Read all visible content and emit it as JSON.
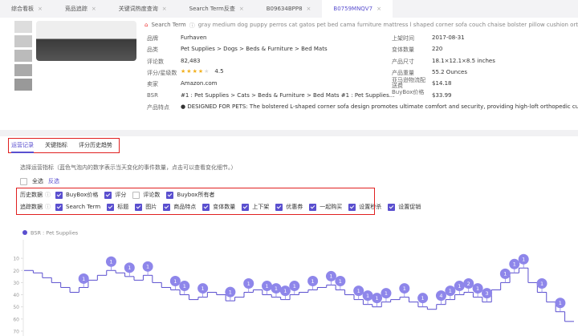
{
  "tabs": [
    "综合看板",
    "竞品追踪",
    "关键词热度查询",
    "Search Term反查",
    "B09634BPP8",
    "B0759MNQV7"
  ],
  "product": {
    "search_term_label": "Search Term",
    "search_term": "gray medium dog puppy perros cat gatos pet bed cama furniture mattress l shaped corner sofa couch chaise bolster pillow cushion orth...",
    "left": [
      {
        "label": "品牌",
        "value": "Furhaven"
      },
      {
        "label": "品类",
        "value": "Pet Supplies > Dogs > Beds & Furniture > Bed Mats"
      },
      {
        "label": "评论数",
        "value": "82,483"
      },
      {
        "label": "评分/星级数",
        "value": 4.5
      },
      {
        "label": "卖家",
        "value": "Amazon.com"
      },
      {
        "label": "BSR",
        "value": "#1 : Pet Supplies > Cats > Beds & Furniture > Bed Mats #1 : Pet Supplies..."
      },
      {
        "label": "产品特点",
        "value": "● DESIGNED FOR PETS: The bolstered L-shaped corner sofa design promotes ultimate comfort and security, providing high-loft orthopedic cushion..."
      }
    ],
    "right": [
      {
        "label": "上架时间",
        "value": "2017-08-31"
      },
      {
        "label": "变体数量",
        "value": "220"
      },
      {
        "label": "产品尺寸",
        "value": "18.1×12.1×8.5 inches"
      },
      {
        "label": "产品重量",
        "value": "55.2 Ounces"
      },
      {
        "label": "亚马逊物流配送费",
        "value": "$14.18"
      },
      {
        "label": "BuyBox价格",
        "value": "$33.99"
      }
    ]
  },
  "subtabs": [
    "运营记录",
    "关键指标",
    "评分历史趋势"
  ],
  "indicators": {
    "title": "选择运营指标（蓝色气泡内的数字表示当天变化的事件数量，点击可以查看变化细节。）",
    "select_all": "全选",
    "invert": "反选",
    "groups": [
      {
        "label": "历史数据",
        "options": [
          {
            "label": "BuyBox价格",
            "checked": true
          },
          {
            "label": "评分",
            "checked": true
          },
          {
            "label": "评论数",
            "checked": false
          },
          {
            "label": "Buybox所有者",
            "checked": true
          }
        ]
      },
      {
        "label": "追踪数据",
        "options": [
          {
            "label": "Search Term",
            "checked": true
          },
          {
            "label": "标题",
            "checked": true
          },
          {
            "label": "图片",
            "checked": true
          },
          {
            "label": "商品特点",
            "checked": true
          },
          {
            "label": "变体数量",
            "checked": true
          },
          {
            "label": "上下架",
            "checked": true
          },
          {
            "label": "优惠券",
            "checked": true
          },
          {
            "label": "一起购买",
            "checked": true
          },
          {
            "label": "设置秒杀",
            "checked": true
          },
          {
            "label": "设置促销",
            "checked": true
          }
        ]
      }
    ]
  },
  "chart": {
    "type": "line",
    "legend": "BSR : Pet Supplies",
    "color": "#5a4fcf",
    "bubble_color": "#8e86ea",
    "inverted": true,
    "ylim": [
      0,
      74
    ],
    "yticks": [
      10,
      20,
      30,
      40,
      50,
      60,
      70
    ],
    "values": [
      20,
      22,
      26,
      30,
      34,
      38,
      34,
      28,
      24,
      20,
      22,
      25,
      28,
      24,
      30,
      34,
      36,
      40,
      44,
      42,
      38,
      40,
      45,
      42,
      38,
      36,
      40,
      42,
      44,
      40,
      38,
      36,
      34,
      32,
      36,
      40,
      44,
      48,
      50,
      46,
      44,
      42,
      46,
      50,
      52,
      48,
      44,
      40,
      38,
      42,
      46,
      36,
      30,
      22,
      18,
      30,
      38,
      46,
      54,
      62
    ],
    "events": [
      null,
      null,
      null,
      null,
      null,
      null,
      1,
      null,
      null,
      1,
      null,
      1,
      null,
      1,
      null,
      null,
      1,
      1,
      null,
      1,
      null,
      null,
      1,
      null,
      1,
      null,
      1,
      1,
      1,
      1,
      null,
      1,
      null,
      1,
      1,
      null,
      1,
      1,
      1,
      1,
      null,
      1,
      null,
      1,
      null,
      4,
      1,
      1,
      2,
      1,
      3,
      null,
      1,
      1,
      1,
      null,
      1,
      null,
      1,
      null
    ]
  }
}
